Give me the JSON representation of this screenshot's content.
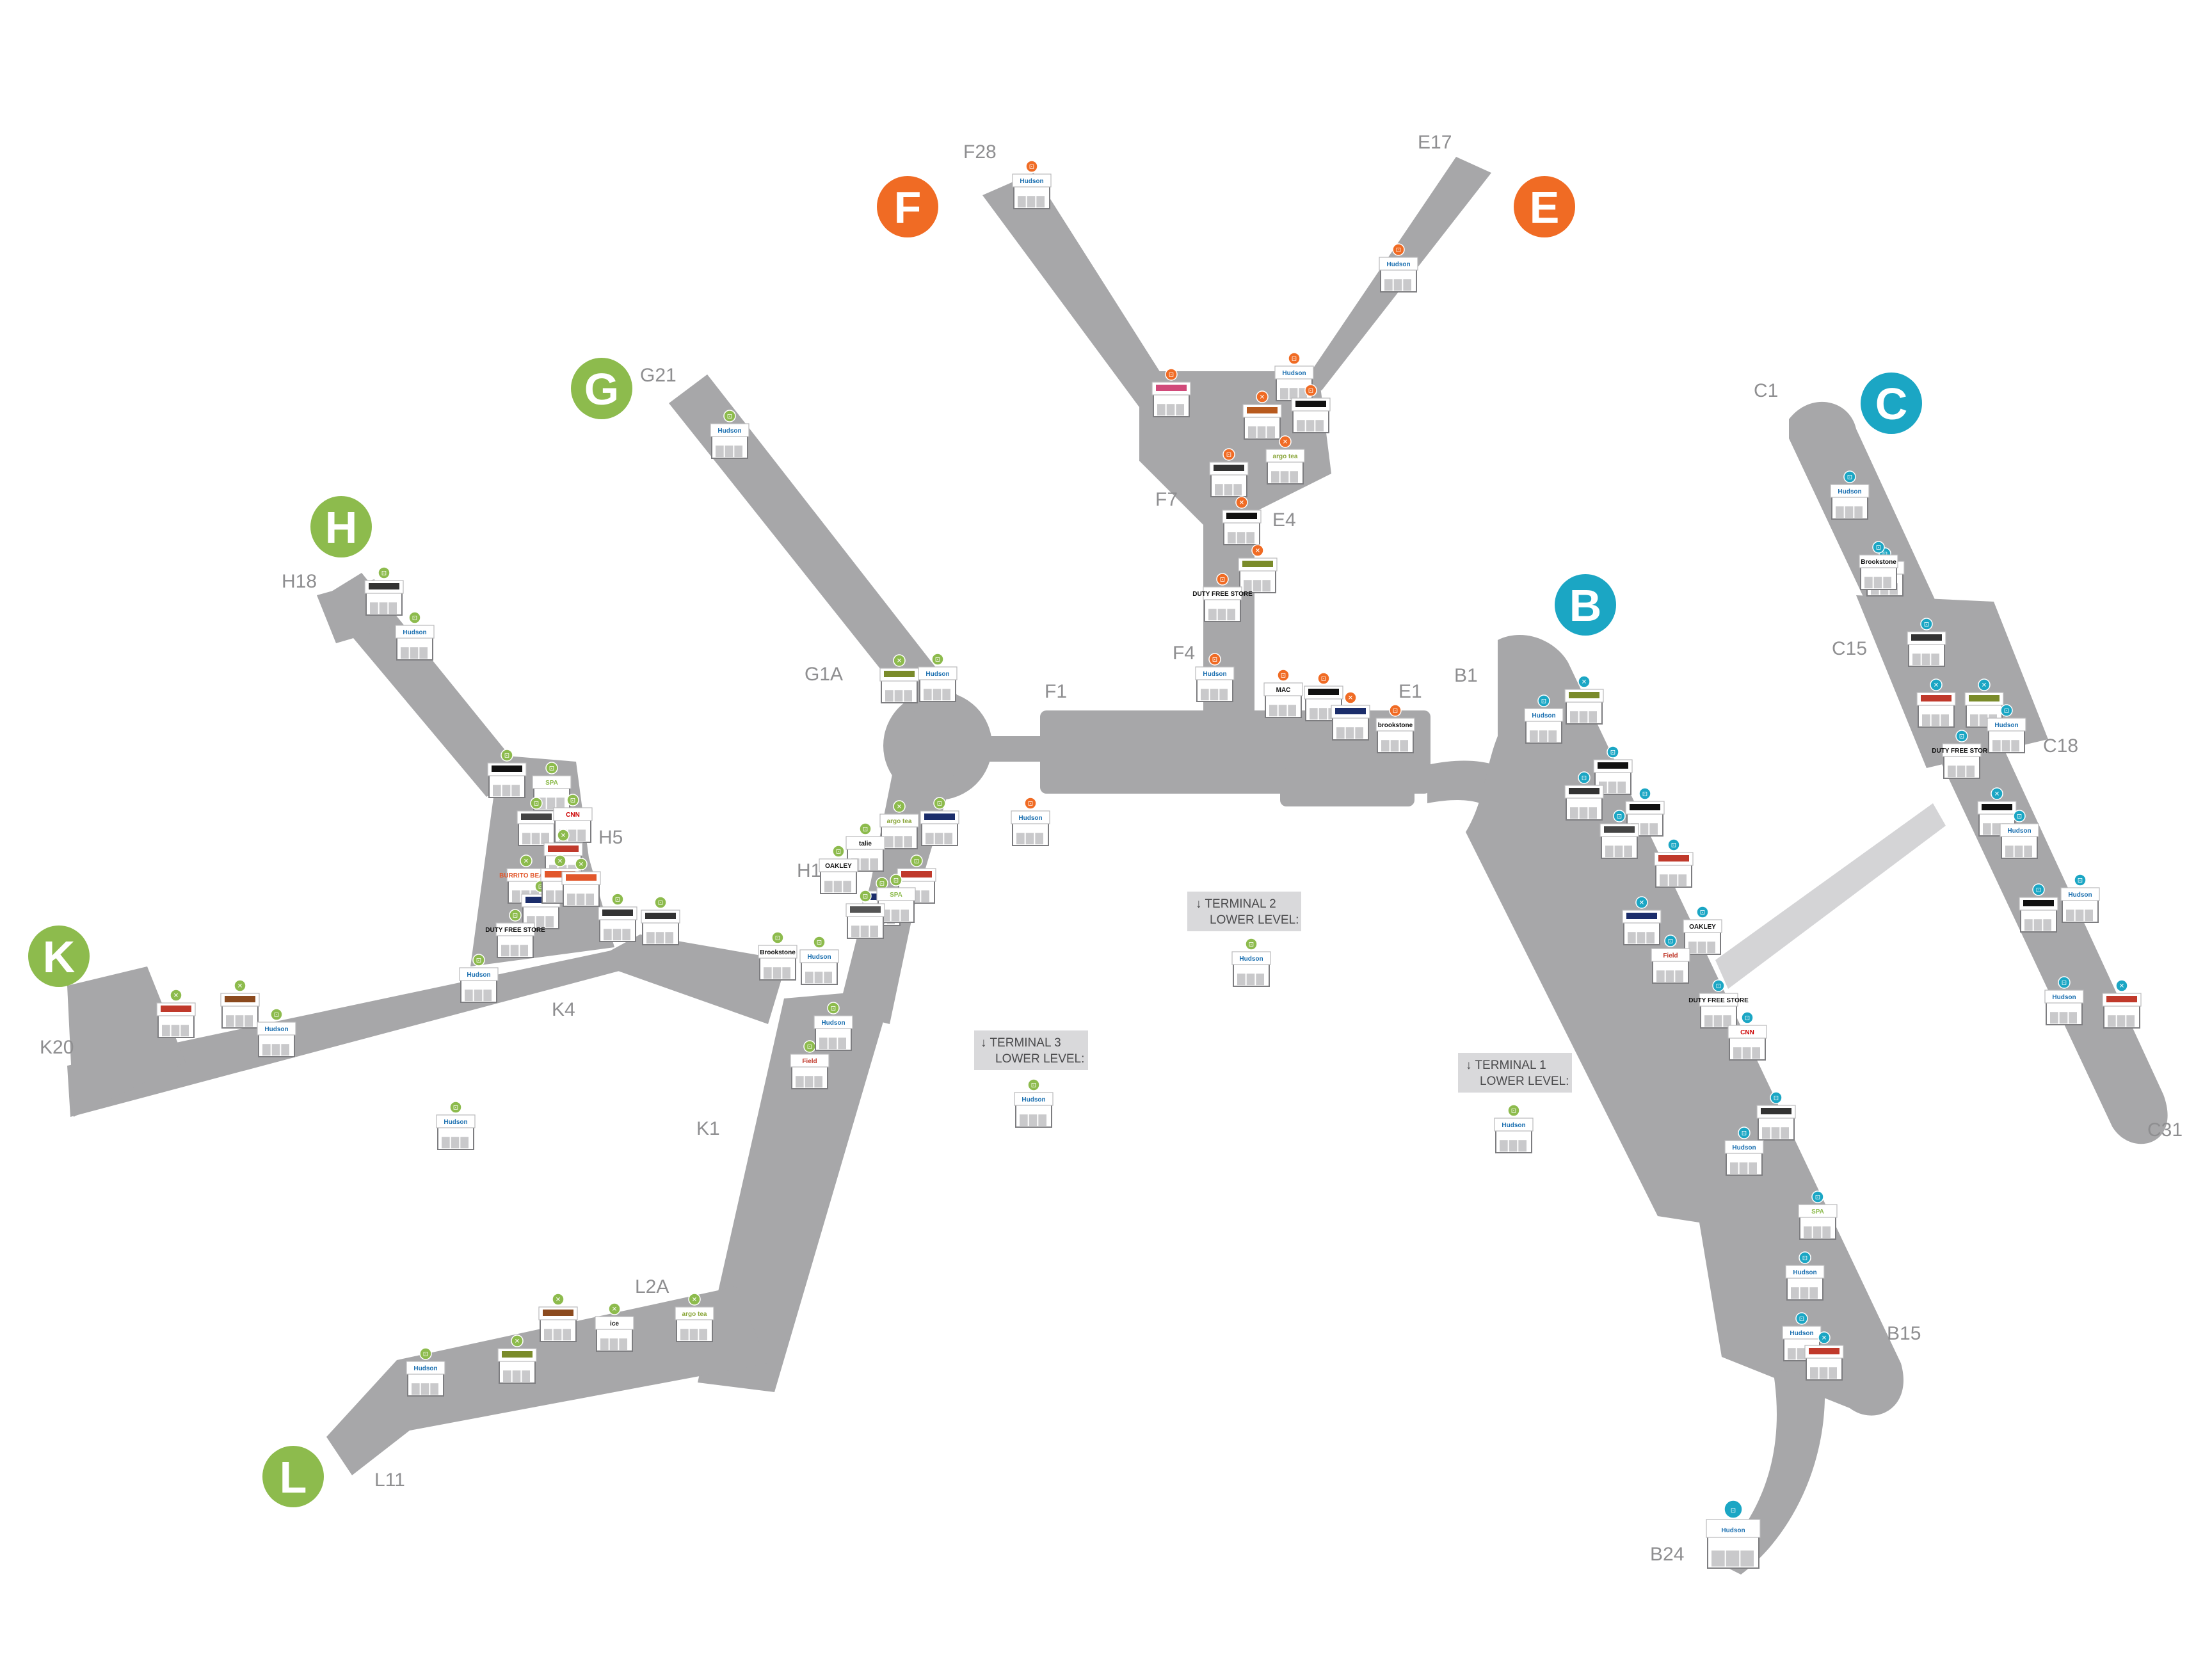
{
  "map": {
    "concourses": [
      {
        "letter": "F",
        "color": "#f06b24",
        "gates": [
          "F28",
          "F7",
          "F4",
          "F1"
        ]
      },
      {
        "letter": "E",
        "color": "#f06b24",
        "gates": [
          "E17",
          "E4",
          "E1"
        ]
      },
      {
        "letter": "G",
        "color": "#8dbb4d",
        "gates": [
          "G21",
          "G1A"
        ]
      },
      {
        "letter": "H",
        "color": "#8dbb4d",
        "gates": [
          "H18",
          "H5",
          "H1"
        ]
      },
      {
        "letter": "K",
        "color": "#8dbb4d",
        "gates": [
          "K20",
          "K4",
          "K1"
        ]
      },
      {
        "letter": "L",
        "color": "#8dbb4d",
        "gates": [
          "L2A",
          "L11"
        ]
      },
      {
        "letter": "B",
        "color": "#1ba6c4",
        "gates": [
          "B1",
          "B15",
          "B24"
        ]
      },
      {
        "letter": "C",
        "color": "#1ba6c4",
        "gates": [
          "C1",
          "C15",
          "C18",
          "C31"
        ]
      }
    ],
    "lower_levels": [
      {
        "arrow": "↓",
        "line1": "TERMINAL 2",
        "line2": "LOWER LEVEL:"
      },
      {
        "arrow": "↓",
        "line1": "TERMINAL 3",
        "line2": "LOWER LEVEL:"
      },
      {
        "arrow": "↓",
        "line1": "TERMINAL 1",
        "line2": "LOWER LEVEL:"
      }
    ],
    "category_colors": {
      "orange": "#f06b24",
      "green": "#8dbb4d",
      "teal": "#1ba6c4"
    },
    "stores": [
      {
        "id": "s1",
        "brand": "Hudson",
        "cat": "shop",
        "color": "orange",
        "sign": "#1a6fb0"
      },
      {
        "id": "s2",
        "brand": "Hudson",
        "cat": "shop",
        "color": "orange",
        "sign": "#1a6fb0"
      },
      {
        "id": "s3",
        "brand": "Hudson",
        "cat": "shop",
        "color": "orange",
        "sign": "#1a6fb0"
      },
      {
        "id": "s4",
        "brand": "",
        "cat": "shop",
        "color": "orange",
        "sign": "#d14a7a"
      },
      {
        "id": "s5",
        "brand": "",
        "cat": "food",
        "color": "orange",
        "sign": "#b85a1e"
      },
      {
        "id": "s6",
        "brand": "",
        "cat": "shop",
        "color": "orange",
        "sign": "#111111"
      },
      {
        "id": "s7",
        "brand": "argo tea",
        "cat": "food",
        "color": "orange",
        "sign": "#8aa63a"
      },
      {
        "id": "s8",
        "brand": "",
        "cat": "shop",
        "color": "orange",
        "sign": "#333333"
      },
      {
        "id": "s9",
        "brand": "",
        "cat": "food",
        "color": "orange",
        "sign": "#111111"
      },
      {
        "id": "s10",
        "brand": "",
        "cat": "food",
        "color": "orange",
        "sign": "#7a8b2a"
      },
      {
        "id": "s11",
        "brand": "DUTY FREE STORE",
        "cat": "shop",
        "color": "orange",
        "sign": "#111111"
      },
      {
        "id": "s12",
        "brand": "Hudson",
        "cat": "shop",
        "color": "orange",
        "sign": "#1a6fb0"
      },
      {
        "id": "s13",
        "brand": "MAC",
        "cat": "shop",
        "color": "orange",
        "sign": "#111111"
      },
      {
        "id": "s14",
        "brand": "",
        "cat": "shop",
        "color": "orange",
        "sign": "#111111"
      },
      {
        "id": "s15",
        "brand": "",
        "cat": "food",
        "color": "orange",
        "sign": "#1b2d6b"
      },
      {
        "id": "s16",
        "brand": "brookstone",
        "cat": "shop",
        "color": "orange",
        "sign": "#111111"
      },
      {
        "id": "s17",
        "brand": "Hudson",
        "cat": "shop",
        "color": "green",
        "sign": "#1a6fb0"
      },
      {
        "id": "s18",
        "brand": "",
        "cat": "shop",
        "color": "green",
        "sign": "#333333"
      },
      {
        "id": "s19",
        "brand": "Hudson",
        "cat": "shop",
        "color": "green",
        "sign": "#1a6fb0"
      },
      {
        "id": "s20",
        "brand": "",
        "cat": "food",
        "color": "green",
        "sign": "#7a8b2a"
      },
      {
        "id": "s21",
        "brand": "Hudson",
        "cat": "shop",
        "color": "green",
        "sign": "#1a6fb0"
      },
      {
        "id": "s22",
        "brand": "",
        "cat": "shop",
        "color": "green",
        "sign": "#111111"
      },
      {
        "id": "s23",
        "brand": "SPA",
        "cat": "shop",
        "color": "green",
        "sign": "#8dbb4d"
      },
      {
        "id": "s24",
        "brand": "",
        "cat": "shop",
        "color": "green",
        "sign": "#444444"
      },
      {
        "id": "s25",
        "brand": "CNN",
        "cat": "shop",
        "color": "green",
        "sign": "#cc0000"
      },
      {
        "id": "s26",
        "brand": "",
        "cat": "food",
        "color": "green",
        "sign": "#c0392b"
      },
      {
        "id": "s27",
        "brand": "BURRITO BEACH",
        "cat": "food",
        "color": "green",
        "sign": "#e2572b"
      },
      {
        "id": "s28",
        "brand": "",
        "cat": "shop",
        "color": "green",
        "sign": "#1b2d6b"
      },
      {
        "id": "s29",
        "brand": "DUTY FREE STORE",
        "cat": "shop",
        "color": "green",
        "sign": "#111111"
      },
      {
        "id": "s30",
        "brand": "",
        "cat": "shop",
        "color": "green",
        "sign": "#333333"
      },
      {
        "id": "s31",
        "brand": "",
        "cat": "shop",
        "color": "green",
        "sign": "#333333"
      },
      {
        "id": "s32",
        "brand": "Hudson",
        "cat": "shop",
        "color": "green",
        "sign": "#1a6fb0"
      },
      {
        "id": "s33",
        "brand": "",
        "cat": "food",
        "color": "green",
        "sign": "#c0392b"
      },
      {
        "id": "s34",
        "brand": "",
        "cat": "food",
        "color": "green",
        "sign": "#8b4a1e"
      },
      {
        "id": "s35",
        "brand": "Hudson",
        "cat": "shop",
        "color": "green",
        "sign": "#1a6fb0"
      },
      {
        "id": "s36",
        "brand": "argo tea",
        "cat": "food",
        "color": "green",
        "sign": "#8aa63a"
      },
      {
        "id": "s37",
        "brand": "",
        "cat": "shop",
        "color": "green",
        "sign": "#1b2d6b"
      },
      {
        "id": "s38",
        "brand": "talie",
        "cat": "shop",
        "color": "green",
        "sign": "#111111"
      },
      {
        "id": "s39",
        "brand": "OAKLEY",
        "cat": "shop",
        "color": "green",
        "sign": "#111111"
      },
      {
        "id": "s40",
        "brand": "",
        "cat": "shop",
        "color": "green",
        "sign": "#c0392b"
      },
      {
        "id": "s41",
        "brand": "",
        "cat": "shop",
        "color": "green",
        "sign": "#1b2d6b"
      },
      {
        "id": "s42",
        "brand": "SPA",
        "cat": "shop",
        "color": "green",
        "sign": "#8dbb4d"
      },
      {
        "id": "s43",
        "brand": "",
        "cat": "shop",
        "color": "green",
        "sign": "#555555"
      },
      {
        "id": "s44",
        "brand": "Brookstone",
        "cat": "shop",
        "color": "green",
        "sign": "#111111"
      },
      {
        "id": "s45",
        "brand": "Hudson",
        "cat": "shop",
        "color": "green",
        "sign": "#1a6fb0"
      },
      {
        "id": "s46",
        "brand": "Field",
        "cat": "shop",
        "color": "green",
        "sign": "#c0392b"
      },
      {
        "id": "s47",
        "brand": "Hudson",
        "cat": "shop",
        "color": "green",
        "sign": "#1a6fb0"
      },
      {
        "id": "s48",
        "brand": "",
        "cat": "food",
        "color": "green",
        "sign": "#e2572b"
      },
      {
        "id": "s49",
        "brand": "",
        "cat": "food",
        "color": "green",
        "sign": "#e2572b"
      },
      {
        "id": "s50",
        "brand": "Hudson",
        "cat": "shop",
        "color": "green",
        "sign": "#1a6fb0"
      },
      {
        "id": "s51",
        "brand": "Hudson",
        "cat": "shop",
        "color": "green",
        "sign": "#1a6fb0"
      },
      {
        "id": "s52",
        "brand": "Hudson",
        "cat": "shop",
        "color": "green",
        "sign": "#1a6fb0"
      },
      {
        "id": "s53",
        "brand": "",
        "cat": "food",
        "color": "green",
        "sign": "#7a8b2a"
      },
      {
        "id": "s54",
        "brand": "Hudson",
        "cat": "shop",
        "color": "green",
        "sign": "#1a6fb0"
      },
      {
        "id": "s55",
        "brand": "",
        "cat": "food",
        "color": "green",
        "sign": "#8b4a1e"
      },
      {
        "id": "s56",
        "brand": "ice",
        "cat": "food",
        "color": "green",
        "sign": "#111111"
      },
      {
        "id": "s57",
        "brand": "argo tea",
        "cat": "food",
        "color": "green",
        "sign": "#8aa63a"
      },
      {
        "id": "s58",
        "brand": "Hudson",
        "cat": "shop",
        "color": "teal",
        "sign": "#1a6fb0"
      },
      {
        "id": "s59",
        "brand": "",
        "cat": "food",
        "color": "teal",
        "sign": "#7a8b2a"
      },
      {
        "id": "s60",
        "brand": "",
        "cat": "shop",
        "color": "teal",
        "sign": "#111111"
      },
      {
        "id": "s61",
        "brand": "",
        "cat": "shop",
        "color": "teal",
        "sign": "#333333"
      },
      {
        "id": "s62",
        "brand": "",
        "cat": "shop",
        "color": "teal",
        "sign": "#111111"
      },
      {
        "id": "s63",
        "brand": "",
        "cat": "shop",
        "color": "teal",
        "sign": "#444444"
      },
      {
        "id": "s64",
        "brand": "",
        "cat": "shop",
        "color": "teal",
        "sign": "#c0392b"
      },
      {
        "id": "s65",
        "brand": "",
        "cat": "food",
        "color": "teal",
        "sign": "#1b2d6b"
      },
      {
        "id": "s66",
        "brand": "OAKLEY",
        "cat": "shop",
        "color": "teal",
        "sign": "#111111"
      },
      {
        "id": "s67",
        "brand": "Field",
        "cat": "shop",
        "color": "teal",
        "sign": "#c0392b"
      },
      {
        "id": "s68",
        "brand": "DUTY FREE STORE",
        "cat": "shop",
        "color": "teal",
        "sign": "#111111"
      },
      {
        "id": "s69",
        "brand": "CNN",
        "cat": "shop",
        "color": "teal",
        "sign": "#cc0000"
      },
      {
        "id": "s70",
        "brand": "",
        "cat": "shop",
        "color": "teal",
        "sign": "#333333"
      },
      {
        "id": "s71",
        "brand": "Hudson",
        "cat": "shop",
        "color": "teal",
        "sign": "#1a6fb0"
      },
      {
        "id": "s72",
        "brand": "SPA",
        "cat": "shop",
        "color": "teal",
        "sign": "#8dbb4d"
      },
      {
        "id": "s73",
        "brand": "Hudson",
        "cat": "shop",
        "color": "teal",
        "sign": "#1a6fb0"
      },
      {
        "id": "s74",
        "brand": "Hudson",
        "cat": "shop",
        "color": "teal",
        "sign": "#1a6fb0"
      },
      {
        "id": "s75",
        "brand": "",
        "cat": "food",
        "color": "teal",
        "sign": "#c0392b"
      },
      {
        "id": "s76",
        "brand": "Hudson",
        "cat": "shop",
        "color": "teal",
        "sign": "#1a6fb0"
      },
      {
        "id": "s77",
        "brand": "Hudson",
        "cat": "shop",
        "color": "teal",
        "sign": "#1a6fb0"
      },
      {
        "id": "s78",
        "brand": "Brookstone",
        "cat": "shop",
        "color": "teal",
        "sign": "#111111"
      },
      {
        "id": "s79",
        "brand": "",
        "cat": "shop",
        "color": "teal",
        "sign": "#333333"
      },
      {
        "id": "s80",
        "brand": "",
        "cat": "food",
        "color": "teal",
        "sign": "#c0392b"
      },
      {
        "id": "s81",
        "brand": "",
        "cat": "food",
        "color": "teal",
        "sign": "#7a8b2a"
      },
      {
        "id": "s82",
        "brand": "DUTY FREE STORE",
        "cat": "shop",
        "color": "teal",
        "sign": "#111111"
      },
      {
        "id": "s83",
        "brand": "Hudson",
        "cat": "shop",
        "color": "teal",
        "sign": "#1a6fb0"
      },
      {
        "id": "s84",
        "brand": "",
        "cat": "food",
        "color": "teal",
        "sign": "#111111"
      },
      {
        "id": "s85",
        "brand": "Hudson",
        "cat": "shop",
        "color": "teal",
        "sign": "#1a6fb0"
      },
      {
        "id": "s86",
        "brand": "",
        "cat": "shop",
        "color": "teal",
        "sign": "#111111"
      },
      {
        "id": "s87",
        "brand": "Hudson",
        "cat": "shop",
        "color": "teal",
        "sign": "#1a6fb0"
      },
      {
        "id": "s88",
        "brand": "Hudson",
        "cat": "shop",
        "color": "teal",
        "sign": "#1a6fb0"
      },
      {
        "id": "s89",
        "brand": "",
        "cat": "food",
        "color": "teal",
        "sign": "#c0392b"
      },
      {
        "id": "s90",
        "brand": "Hudson",
        "cat": "shop",
        "color": "green",
        "sign": "#1a6fb0"
      },
      {
        "id": "s91",
        "brand": "Hudson",
        "cat": "shop",
        "color": "orange",
        "sign": "#1a6fb0"
      },
      {
        "id": "s92",
        "brand": "Hudson",
        "cat": "shop",
        "color": "teal",
        "sign": "#1a6fb0"
      }
    ]
  }
}
